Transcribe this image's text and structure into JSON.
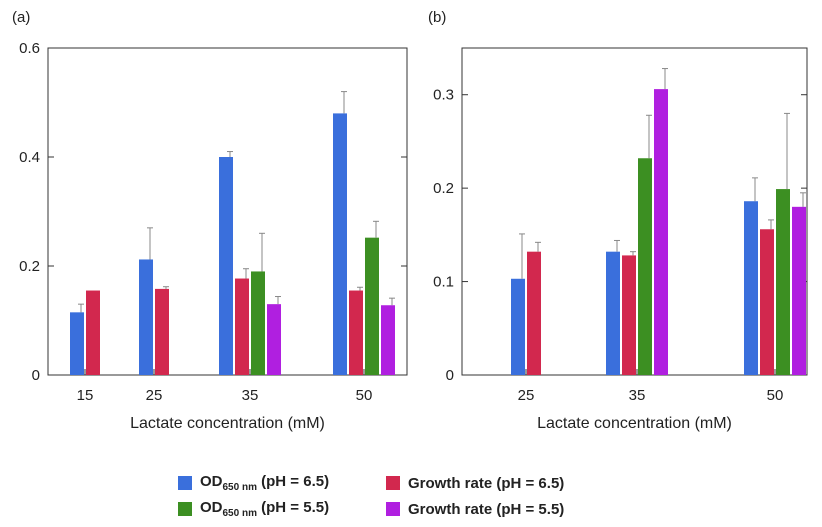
{
  "colors": {
    "od_ph65": "#3a6fdc",
    "gr_ph65": "#d2284e",
    "od_ph55": "#3c8f22",
    "gr_ph55": "#b01fe0",
    "errorbar": "#888888"
  },
  "chart_data": [
    {
      "type": "bar",
      "panel_label": "(a)",
      "xlabel": "Lactate concentration (mM)",
      "ylabel": "",
      "ylim": [
        0,
        0.6
      ],
      "yticks": [
        "0",
        "0.2",
        "0.4",
        "0.6"
      ],
      "categories": [
        "15",
        "25",
        "35",
        "50"
      ],
      "series": [
        {
          "key": "od_ph65",
          "values": [
            0.115,
            0.212,
            0.4,
            0.48
          ],
          "errors": [
            0.015,
            0.058,
            0.01,
            0.04
          ]
        },
        {
          "key": "gr_ph65",
          "values": [
            0.155,
            0.158,
            0.177,
            0.155
          ],
          "errors": [
            0.0,
            0.004,
            0.018,
            0.006
          ]
        },
        {
          "key": "od_ph55",
          "values": [
            null,
            null,
            0.19,
            0.252
          ],
          "errors": [
            null,
            null,
            0.07,
            0.03
          ]
        },
        {
          "key": "gr_ph55",
          "values": [
            null,
            null,
            0.13,
            0.128
          ],
          "errors": [
            null,
            null,
            0.014,
            0.013
          ]
        }
      ]
    },
    {
      "type": "bar",
      "panel_label": "(b)",
      "xlabel": "Lactate concentration (mM)",
      "ylabel": "",
      "ylim": [
        0,
        0.35
      ],
      "yticks": [
        "0",
        "0.1",
        "0.2",
        "0.3"
      ],
      "categories": [
        "25",
        "35",
        "50"
      ],
      "series": [
        {
          "key": "od_ph65",
          "values": [
            0.103,
            0.132,
            0.186
          ],
          "errors": [
            0.048,
            0.012,
            0.025
          ]
        },
        {
          "key": "gr_ph65",
          "values": [
            0.132,
            0.128,
            0.156
          ],
          "errors": [
            0.01,
            0.004,
            0.01
          ]
        },
        {
          "key": "od_ph55",
          "values": [
            null,
            0.232,
            0.199
          ],
          "errors": [
            null,
            0.046,
            0.081
          ]
        },
        {
          "key": "gr_ph55",
          "values": [
            null,
            0.306,
            0.18
          ],
          "errors": [
            null,
            0.022,
            0.015
          ]
        }
      ]
    }
  ],
  "legend": {
    "items": [
      {
        "key": "od_ph65",
        "main": "OD",
        "sub": "650 nm",
        "rest": " (pH = 6.5)"
      },
      {
        "key": "gr_ph65",
        "main": "Growth rate (pH = 6.5)",
        "sub": "",
        "rest": ""
      },
      {
        "key": "od_ph55",
        "main": "OD",
        "sub": "650 nm",
        "rest": " (pH = 5.5)"
      },
      {
        "key": "gr_ph55",
        "main": "Growth rate (pH = 5.5)",
        "sub": "",
        "rest": ""
      }
    ]
  }
}
